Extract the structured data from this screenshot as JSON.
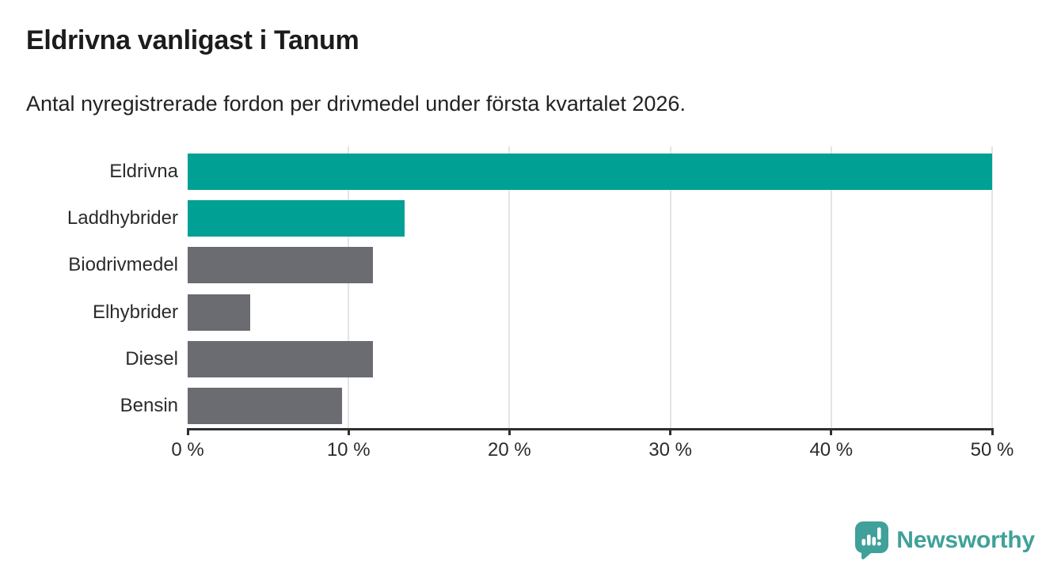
{
  "header": {
    "title": "Eldrivna vanligast i Tanum",
    "subtitle": "Antal nyregistrerade fordon per drivmedel under första kvartalet 2026."
  },
  "chart_data": {
    "type": "bar",
    "orientation": "horizontal",
    "title": "Eldrivna vanligast i Tanum",
    "subtitle": "Antal nyregistrerade fordon per drivmedel under första kvartalet 2026.",
    "categories": [
      "Eldrivna",
      "Laddhybrider",
      "Biodrivmedel",
      "Elhybrider",
      "Diesel",
      "Bensin"
    ],
    "values": [
      50.0,
      13.5,
      11.5,
      3.9,
      11.5,
      9.6
    ],
    "unit": "%",
    "bar_colors": [
      "#00a094",
      "#00a094",
      "#6b6b72",
      "#6b6b72",
      "#6b6b72",
      "#6b6b72"
    ],
    "xlim": [
      0,
      50
    ],
    "x_ticks": [
      0,
      10,
      20,
      30,
      40,
      50
    ],
    "x_tick_labels": [
      "0 %",
      "10 %",
      "20 %",
      "30 %",
      "40 %",
      "50 %"
    ],
    "grid": "vertical-gridlines-at-ticks-except-zero",
    "legend": "none"
  },
  "footer": {
    "brand": "Newsworthy"
  },
  "colors": {
    "accent_teal": "#00a094",
    "neutral_gray": "#6b6b72",
    "logo_teal": "#3fa199",
    "axis": "#2f2f2f",
    "gridline": "#e4e4e6",
    "text": "#2b2b2b",
    "background": "#ffffff"
  }
}
